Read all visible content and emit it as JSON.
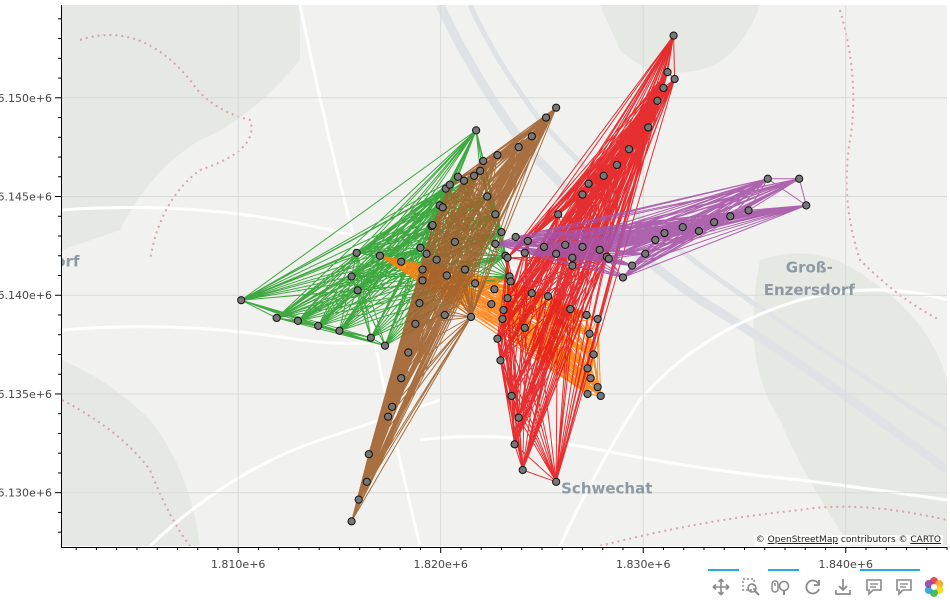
{
  "chart_data": {
    "type": "scatter",
    "subtype": "network-graph-on-map",
    "xlim": [
      1801300,
      1845000
    ],
    "ylim": [
      6127300,
      6154700
    ],
    "x_ticks": [
      {
        "value": 1810000,
        "label": "1.810e+6"
      },
      {
        "value": 1820000,
        "label": "1.820e+6"
      },
      {
        "value": 1830000,
        "label": "1.830e+6"
      },
      {
        "value": 1840000,
        "label": "1.840e+6"
      }
    ],
    "y_ticks": [
      {
        "value": 6130000,
        "label": "6.130e+6"
      },
      {
        "value": 6135000,
        "label": "6.135e+6"
      },
      {
        "value": 6140000,
        "label": "6.140e+6"
      },
      {
        "value": 6145000,
        "label": "6.145e+6"
      },
      {
        "value": 6150000,
        "label": "6.150e+6"
      }
    ],
    "grid": true,
    "marker": {
      "fill": "#777777",
      "stroke": "#111111"
    },
    "groups": [
      {
        "color": "#2ca02c",
        "nodes": [
          [
            1810150,
            6139750
          ],
          [
            1811900,
            6138850
          ],
          [
            1812950,
            6138700
          ],
          [
            1813950,
            6138450
          ],
          [
            1815000,
            6138200
          ],
          [
            1816550,
            6137850
          ],
          [
            1817250,
            6137450
          ],
          [
            1815900,
            6140250
          ],
          [
            1815600,
            6140950
          ],
          [
            1815850,
            6142150
          ],
          [
            1819000,
            6142400
          ],
          [
            1819550,
            6143500
          ],
          [
            1819950,
            6144550
          ],
          [
            1820250,
            6145400
          ],
          [
            1820850,
            6146000
          ],
          [
            1821750,
            6148350
          ],
          [
            1821950,
            6146300
          ],
          [
            1822300,
            6145000
          ],
          [
            1822700,
            6144100
          ],
          [
            1823000,
            6143200
          ],
          [
            1823200,
            6142000
          ],
          [
            1823400,
            6140950
          ]
        ]
      },
      {
        "color": "#ff7f0e",
        "nodes": [
          [
            1817000,
            6142000
          ],
          [
            1818050,
            6141700
          ],
          [
            1819100,
            6141300
          ],
          [
            1820300,
            6141000
          ],
          [
            1821700,
            6140600
          ],
          [
            1822650,
            6140300
          ],
          [
            1823450,
            6140700
          ],
          [
            1824500,
            6140100
          ],
          [
            1825300,
            6139950
          ],
          [
            1826400,
            6139300
          ],
          [
            1827200,
            6139000
          ],
          [
            1827750,
            6138800
          ],
          [
            1827350,
            6138050
          ],
          [
            1827550,
            6137000
          ],
          [
            1827250,
            6136300
          ],
          [
            1827400,
            6135800
          ],
          [
            1827250,
            6135000
          ],
          [
            1827750,
            6135350
          ],
          [
            1827900,
            6134900
          ],
          [
            1824150,
            6138350
          ],
          [
            1823100,
            6139250
          ],
          [
            1822500,
            6139550
          ]
        ]
      },
      {
        "color": "#a0612c",
        "nodes": [
          [
            1815600,
            6128550
          ],
          [
            1815950,
            6129650
          ],
          [
            1816350,
            6130550
          ],
          [
            1816450,
            6131950
          ],
          [
            1817400,
            6133850
          ],
          [
            1817600,
            6134350
          ],
          [
            1818050,
            6135800
          ],
          [
            1818400,
            6137100
          ],
          [
            1818750,
            6138550
          ],
          [
            1818950,
            6139600
          ],
          [
            1819100,
            6140750
          ],
          [
            1819300,
            6142100
          ],
          [
            1819600,
            6143550
          ],
          [
            1820100,
            6144450
          ],
          [
            1820450,
            6145600
          ],
          [
            1821150,
            6145800
          ],
          [
            1821650,
            6146050
          ],
          [
            1822100,
            6146800
          ],
          [
            1822800,
            6147100
          ],
          [
            1823850,
            6147500
          ],
          [
            1824500,
            6148050
          ],
          [
            1825200,
            6149000
          ],
          [
            1825700,
            6149500
          ],
          [
            1820200,
            6139000
          ],
          [
            1821500,
            6138900
          ],
          [
            1819800,
            6141800
          ],
          [
            1820700,
            6142700
          ],
          [
            1821200,
            6141300
          ]
        ]
      },
      {
        "color": "#e41a1c",
        "nodes": [
          [
            1824050,
            6131150
          ],
          [
            1825700,
            6130550
          ],
          [
            1823650,
            6132450
          ],
          [
            1823850,
            6133800
          ],
          [
            1823500,
            6134900
          ],
          [
            1822950,
            6136700
          ],
          [
            1822800,
            6137800
          ],
          [
            1823050,
            6138800
          ],
          [
            1823300,
            6139850
          ],
          [
            1823300,
            6141900
          ],
          [
            1824300,
            6142750
          ],
          [
            1825800,
            6144100
          ],
          [
            1827000,
            6145100
          ],
          [
            1827300,
            6145650
          ],
          [
            1828050,
            6146050
          ],
          [
            1828700,
            6146600
          ],
          [
            1829300,
            6147400
          ],
          [
            1830250,
            6148500
          ],
          [
            1830700,
            6149850
          ],
          [
            1831000,
            6150500
          ],
          [
            1831200,
            6151300
          ],
          [
            1831500,
            6153150
          ],
          [
            1831550,
            6150950
          ],
          [
            1828200,
            6141950
          ],
          [
            1826500,
            6141500
          ]
        ]
      },
      {
        "color": "#a653a6",
        "nodes": [
          [
            1823700,
            6142950
          ],
          [
            1824150,
            6142150
          ],
          [
            1825100,
            6142450
          ],
          [
            1826150,
            6142550
          ],
          [
            1827000,
            6142450
          ],
          [
            1827850,
            6142300
          ],
          [
            1828300,
            6141850
          ],
          [
            1829450,
            6141500
          ],
          [
            1830100,
            6142100
          ],
          [
            1830600,
            6142800
          ],
          [
            1831050,
            6143150
          ],
          [
            1831950,
            6143450
          ],
          [
            1832750,
            6143250
          ],
          [
            1833500,
            6143700
          ],
          [
            1834300,
            6144000
          ],
          [
            1835200,
            6144300
          ],
          [
            1836150,
            6145900
          ],
          [
            1837700,
            6145900
          ],
          [
            1838050,
            6144550
          ],
          [
            1825700,
            6142100
          ],
          [
            1826500,
            6141900
          ],
          [
            1829000,
            6140900
          ],
          [
            1822700,
            6142600
          ]
        ]
      }
    ]
  },
  "map": {
    "labels": [
      {
        "text": "Groß-",
        "lon": 1838200,
        "lat": 6141150,
        "size": 15
      },
      {
        "text": "Enzersdorf",
        "lon": 1838200,
        "lat": 6140000,
        "size": 15
      },
      {
        "text": "Schwechat",
        "lon": 1828200,
        "lat": 6129950,
        "size": 15
      },
      {
        "text": "dorf",
        "lon": 1801300,
        "lat": 6141450,
        "size": 15
      }
    ]
  },
  "attribution": {
    "prefix": "© ",
    "osm": "OpenStreetMap",
    "middle": " contributors © ",
    "carto": "CARTO"
  },
  "toolbar": {
    "icons": [
      "pan-icon",
      "box-zoom-icon",
      "wheel-zoom-icon",
      "reset-icon",
      "save-icon",
      "hover-icon",
      "hover-icon-2",
      "bokeh-logo"
    ]
  }
}
